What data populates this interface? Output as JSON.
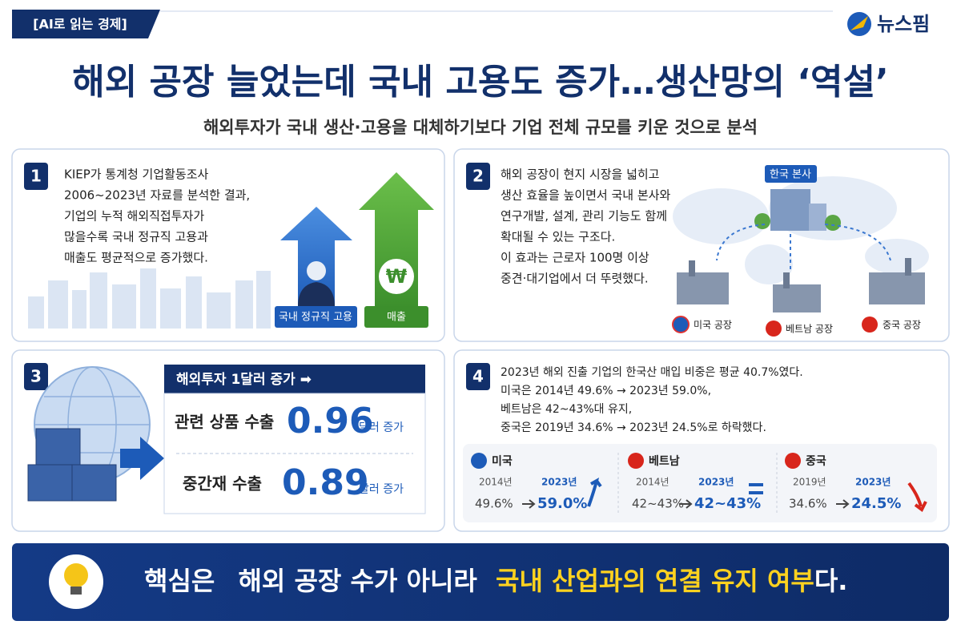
{
  "header": {
    "tag": "[AI로 읽는 경제]",
    "brand": "뉴스핌",
    "title": "해외 공장 늘었는데 국내 고용도 증가…생산망의 ‘역설’",
    "subtitle": "해외투자가 국내 생산·고용을 대체하기보다 기업 전체 규모를 키운 것으로 분석"
  },
  "panels": [
    {
      "number": "1",
      "lines": [
        "KIEP가 통계청 기업활동조사",
        "2006~2023년 자료를 분석한 결과,",
        "기업의 누적 해외직접투자가",
        "많을수록 국내 정규직 고용과",
        "매출도 평균적으로 증가했다."
      ],
      "won_symbol": "₩",
      "labels": [
        "국내 정규직 고용",
        "매출"
      ]
    },
    {
      "number": "2",
      "lines": [
        "해외 공장이 현지 시장을 넓히고",
        "생산 효율을 높이면서 국내 본사와",
        "연구개발, 설계, 관리 기능도 함께",
        "확대될 수 있는 구조다.",
        "이 효과는 근로자 100명 이상",
        "중견·대기업에서 더 뚜렷했다."
      ],
      "hq": "한국 본사",
      "factories": [
        "미국 공장",
        "베트남 공장",
        "중국 공장"
      ]
    },
    {
      "number": "3",
      "banner": "해외투자 1달러 증가 ➡",
      "rows": [
        {
          "label": "관련 상품 수출",
          "value": "0.96",
          "unit": "달러 증가"
        },
        {
          "label": "중간재 수출",
          "value": "0.89",
          "unit": "달러 증가"
        }
      ]
    },
    {
      "number": "4",
      "lines": [
        "2023년 해외 진출 기업의 한국산 매입 비중은 평균 40.7%였다.",
        "미국은 2014년 49.6% → 2023년 59.0%,",
        "베트남은 42~43%대 유지,",
        "중국은 2019년 34.6% → 2023년 24.5%로 하락했다."
      ],
      "countries": [
        {
          "name": "미국",
          "from_year": "2014년",
          "to_year": "2023년",
          "from": "49.6%",
          "to": "59.0%"
        },
        {
          "name": "베트남",
          "from_year": "2014년",
          "to_year": "2023년",
          "from": "42~43%",
          "to": "42~43%"
        },
        {
          "name": "중국",
          "from_year": "2019년",
          "to_year": "2023년",
          "from": "34.6%",
          "to": "24.5%"
        }
      ]
    }
  ],
  "footer": {
    "parts": [
      "핵심은",
      "해외 공장 수가 아니라",
      "국내 산업과의 연결 유지 여부",
      "다."
    ]
  }
}
